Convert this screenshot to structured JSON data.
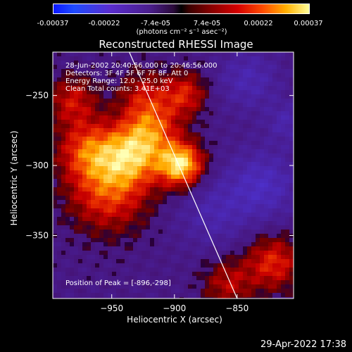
{
  "colorbar": {
    "ticks": [
      "-0.00037",
      "-0.00022",
      "-7.4e-05",
      "7.4e-05",
      "0.00022",
      "0.00037"
    ],
    "units": "(photons cm⁻² s⁻¹ asec⁻²)"
  },
  "title": "Reconstructed RHESSI Image",
  "annotations": {
    "time": "28-Jun-2002 20:40:56.000 to 20:46:56.000",
    "detectors": "Detectors: 3F 4F 5F 6F 7F 8F, Att 0",
    "energy": "Energy Range: 12.0 - 25.0 keV",
    "clean": "Clean     Total counts: 3.41E+03",
    "peak": "Position of Peak = [-896,-298]"
  },
  "axes": {
    "xlabel": "Heliocentric X (arcsec)",
    "ylabel": "Heliocentric Y (arcsec)",
    "xticks": [
      "-950",
      "-900",
      "-850"
    ],
    "yticks": [
      "-250",
      "-300",
      "-350"
    ]
  },
  "footer": {
    "datestamp": "29-Apr-2022 17:38"
  },
  "chart_data": {
    "type": "heatmap",
    "title": "Reconstructed RHESSI Image",
    "xlabel": "Heliocentric X (arcsec)",
    "ylabel": "Heliocentric Y (arcsec)",
    "xlim": [
      -997,
      -805
    ],
    "ylim": [
      -395,
      -219
    ],
    "xticks": [
      -950,
      -900,
      -850
    ],
    "yticks": [
      -250,
      -300,
      -350
    ],
    "colorbar_range": [
      -0.00037,
      0.00037
    ],
    "colorbar_ticks": [
      -0.00037,
      -0.00022,
      -7.4e-05,
      7.4e-05,
      0.00022,
      0.00037
    ],
    "peak": {
      "x": -896,
      "y": -298
    },
    "limb_line": [
      [
        -936,
        -219
      ],
      [
        -850,
        -395
      ]
    ],
    "colors": {
      "negative": "#5a2dcf",
      "positive": "#d40000",
      "peak": "#ffff9a"
    }
  }
}
